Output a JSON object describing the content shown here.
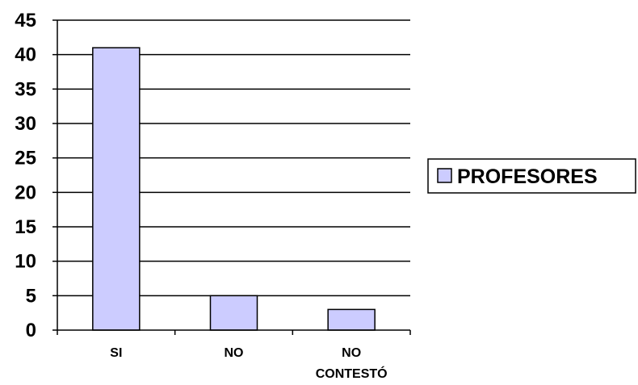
{
  "chart_data": {
    "type": "bar",
    "categories": [
      "SI",
      "NO",
      "NO CONTESTÓ"
    ],
    "category_lines": [
      [
        "SI"
      ],
      [
        "NO"
      ],
      [
        "NO",
        "CONTESTÓ"
      ]
    ],
    "series": [
      {
        "name": "PROFESORES",
        "values": [
          41,
          5,
          3
        ]
      }
    ],
    "ylim": [
      0,
      45
    ],
    "yticks": [
      0,
      5,
      10,
      15,
      20,
      25,
      30,
      35,
      40,
      45
    ],
    "grid": true,
    "legend": "right",
    "bar_color": "#CCCCFF",
    "edge_color": "#000000"
  }
}
